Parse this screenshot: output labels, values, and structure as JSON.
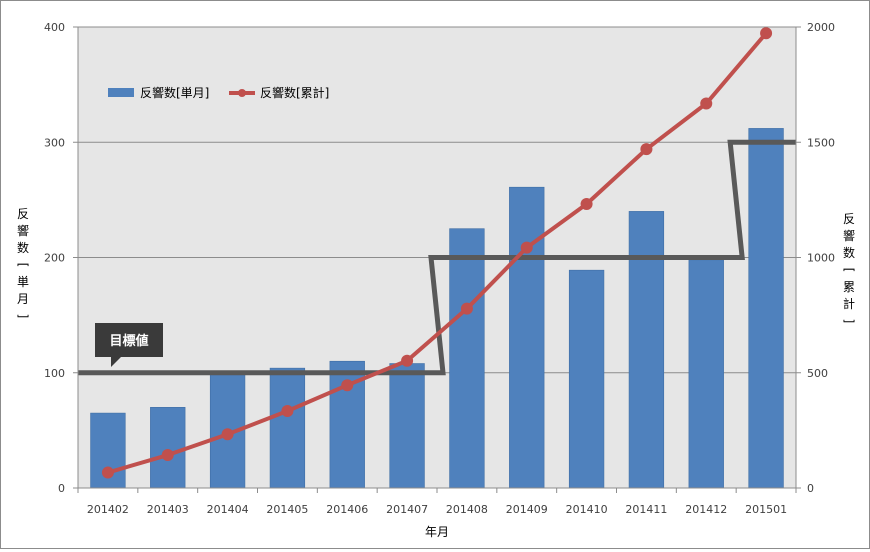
{
  "chart_data": {
    "type": "bar",
    "categories": [
      "201402",
      "201403",
      "201404",
      "201405",
      "201406",
      "201407",
      "201408",
      "201409",
      "201410",
      "201411",
      "201412",
      "201501"
    ],
    "series": [
      {
        "name": "反響数[単月]",
        "type": "bar",
        "axis": "left",
        "color": "#4f81bd",
        "values": [
          65,
          70,
          100,
          104,
          110,
          108,
          225,
          261,
          189,
          240,
          198,
          312
        ]
      },
      {
        "name": "反響数[累計]",
        "type": "line",
        "axis": "right",
        "color": "#c0504d",
        "values": [
          67,
          143,
          233,
          334,
          446,
          552,
          778,
          1043,
          1232,
          1470,
          1668,
          1973
        ]
      }
    ],
    "target": {
      "label": "目標値",
      "axis": "left",
      "color": "#595959",
      "steps": [
        {
          "from": "201402",
          "to": "201407",
          "value": 100
        },
        {
          "from": "201408",
          "to": "201412",
          "value": 200
        },
        {
          "from": "201501",
          "to": "201501",
          "value": 300
        }
      ]
    },
    "xlabel": "年月",
    "ylabel_left": "反響数[単月]",
    "ylabel_right": "反響数[累計]",
    "ylim_left": [
      0,
      400
    ],
    "ylim_right": [
      0,
      2000
    ],
    "yticks_left": [
      "0",
      "100",
      "200",
      "300",
      "400"
    ],
    "yticks_right": [
      "0",
      "500",
      "1000",
      "1500",
      "2000"
    ],
    "plot_background": "#e6e6e6",
    "grid": "horizontal",
    "legend_position": "top-left"
  }
}
